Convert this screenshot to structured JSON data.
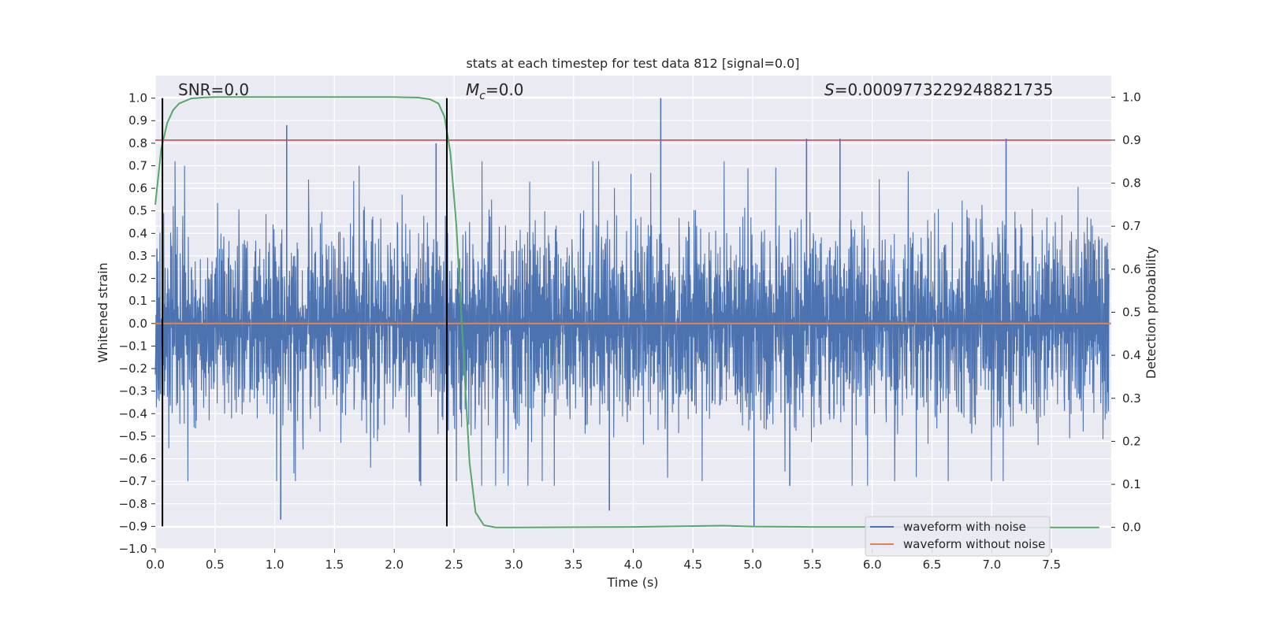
{
  "chart_data": {
    "type": "line",
    "title": "stats at each timestep for test data 812 [signal=0.0]",
    "xlabel": "Time (s)",
    "ylabel_left": "Whitened strain",
    "ylabel_right": "Detection probability",
    "xlim": [
      0.0,
      8.0
    ],
    "ylim_left": [
      -1.0,
      1.1
    ],
    "ylim_right": [
      -0.05,
      1.05
    ],
    "x_ticks": [
      "0.0",
      "0.5",
      "1.0",
      "1.5",
      "2.0",
      "2.5",
      "3.0",
      "3.5",
      "4.0",
      "4.5",
      "5.0",
      "5.5",
      "6.0",
      "6.5",
      "7.0",
      "7.5"
    ],
    "y_ticks_left": [
      "−1.0",
      "−0.9",
      "−0.8",
      "−0.7",
      "−0.6",
      "−0.5",
      "−0.4",
      "−0.3",
      "−0.2",
      "−0.1",
      "0.0",
      "0.1",
      "0.2",
      "0.3",
      "0.4",
      "0.5",
      "0.6",
      "0.7",
      "0.8",
      "0.9",
      "1.0"
    ],
    "y_ticks_right": [
      "0.0",
      "0.1",
      "0.2",
      "0.3",
      "0.4",
      "0.5",
      "0.6",
      "0.7",
      "0.8",
      "0.9",
      "1.0"
    ],
    "grid": true,
    "legend_position": "lower-right",
    "annotations": {
      "snr_prefix": "SNR=",
      "snr_value": "0.0",
      "mc_symbol": "M",
      "mc_subscript": "c",
      "mc_value": "=0.0",
      "s_symbol": "S",
      "s_value": "=0.0009773229248821735"
    },
    "series": [
      {
        "name": "waveform with noise",
        "axis": "left",
        "color": "#4c72b0",
        "description_values": "dense whitened noise, mostly within ±0.5, peak 1.0 at t≈4.23, trough −0.9 at t≈5.01",
        "notable_peaks": [
          {
            "x": 1.1,
            "y": 0.88
          },
          {
            "x": 2.35,
            "y": 0.8
          },
          {
            "x": 4.23,
            "y": 1.0
          },
          {
            "x": 5.45,
            "y": 0.82
          },
          {
            "x": 5.73,
            "y": 0.82
          },
          {
            "x": 7.12,
            "y": 0.82
          }
        ],
        "notable_troughs": [
          {
            "x": 1.05,
            "y": -0.87
          },
          {
            "x": 3.8,
            "y": -0.83
          },
          {
            "x": 5.01,
            "y": -0.9
          },
          {
            "x": 5.31,
            "y": -0.72
          }
        ]
      },
      {
        "name": "waveform without noise",
        "axis": "left",
        "color": "#dd8452",
        "x": [
          0.0,
          8.0
        ],
        "y": [
          0.0,
          0.0
        ]
      },
      {
        "axis": "right",
        "color": "#55a868",
        "x": [
          0.0,
          0.05,
          0.1,
          0.15,
          0.2,
          0.3,
          0.4,
          0.5,
          1.0,
          1.5,
          2.0,
          2.2,
          2.3,
          2.37,
          2.42,
          2.47,
          2.52,
          2.58,
          2.63,
          2.68,
          2.75,
          2.85,
          3.0,
          4.0,
          4.75,
          5.0,
          5.5,
          6.0,
          7.0,
          7.9
        ],
        "y": [
          0.75,
          0.88,
          0.94,
          0.97,
          0.985,
          0.997,
          0.999,
          1.0,
          1.0,
          1.0,
          1.0,
          0.999,
          0.995,
          0.985,
          0.955,
          0.87,
          0.7,
          0.4,
          0.15,
          0.035,
          0.005,
          0.0,
          0.0,
          0.001,
          0.004,
          0.002,
          0.001,
          0.001,
          0.0,
          0.0
        ]
      }
    ],
    "threshold_line": {
      "axis": "right",
      "value": 0.9,
      "color": "#c44e52"
    },
    "vertical_markers": {
      "x": [
        0.06,
        2.44
      ],
      "ymin": -0.9,
      "ymax": 1.0,
      "color": "#000000"
    }
  }
}
